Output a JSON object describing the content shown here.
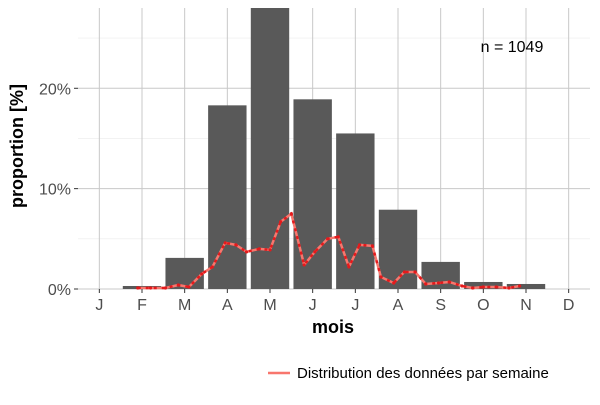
{
  "chart_data": {
    "type": "bar",
    "xlabel": "mois",
    "ylabel": "proportion [%]",
    "categories": [
      "J",
      "F",
      "M",
      "A",
      "M",
      "J",
      "J",
      "A",
      "S",
      "O",
      "N",
      "D"
    ],
    "ylim": [
      0,
      28
    ],
    "y_ticks": [
      0,
      10,
      20
    ],
    "y_tick_labels": [
      "0%",
      "10%",
      "20%"
    ],
    "grid": true,
    "annotation": "n = 1049",
    "series": [
      {
        "type": "bar",
        "values": [
          0,
          0.3,
          3.1,
          18.3,
          28.5,
          18.9,
          15.5,
          7.9,
          2.7,
          0.7,
          0.5,
          0
        ],
        "color": "#595959"
      },
      {
        "type": "line",
        "name": "Distribution des données par semaine",
        "color": "#f8766d",
        "x": [
          1.9,
          2.2,
          2.55,
          2.85,
          3.1,
          3.4,
          3.65,
          3.95,
          4.2,
          4.45,
          4.75,
          5.0,
          5.25,
          5.5,
          5.8,
          6.05,
          6.35,
          6.6,
          6.85,
          7.1,
          7.4,
          7.6,
          7.9,
          8.15,
          8.4,
          8.65,
          8.95,
          9.2,
          9.5,
          9.75,
          10.0,
          10.3,
          10.6,
          10.85
        ],
        "values": [
          0.1,
          0.1,
          0.1,
          0.4,
          0.2,
          1.5,
          2.2,
          4.6,
          4.4,
          3.7,
          4.0,
          3.9,
          6.7,
          7.5,
          2.4,
          3.7,
          5.0,
          5.2,
          2.2,
          4.4,
          4.3,
          1.2,
          0.6,
          1.7,
          1.7,
          0.5,
          0.6,
          0.7,
          0.3,
          0.1,
          0.2,
          0.2,
          0.1,
          0.3
        ]
      }
    ],
    "legend": {
      "position": "bottom-right",
      "label": "Distribution des données par semaine"
    }
  }
}
